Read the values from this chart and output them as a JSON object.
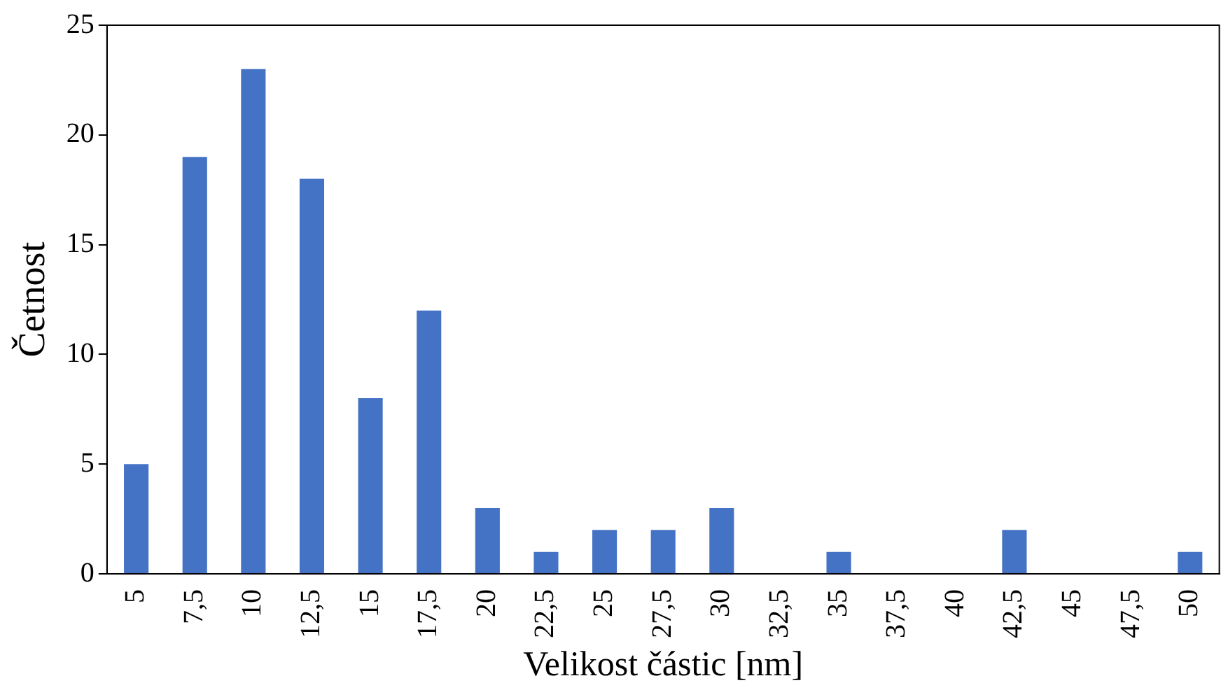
{
  "chart_data": {
    "type": "bar",
    "xlabel": "Velikost částic [nm]",
    "ylabel": "Četnost",
    "categories": [
      "5",
      "7,5",
      "10",
      "12,5",
      "15",
      "17,5",
      "20",
      "22,5",
      "25",
      "27,5",
      "30",
      "32,5",
      "35",
      "37,5",
      "40",
      "42,5",
      "45",
      "47,5",
      "50"
    ],
    "values": [
      5,
      19,
      23,
      18,
      8,
      12,
      3,
      1,
      2,
      2,
      3,
      0,
      1,
      0,
      0,
      2,
      0,
      0,
      1
    ],
    "color": "#4472c4",
    "ylim": [
      0,
      25
    ],
    "yticks": [
      0,
      5,
      10,
      15,
      20,
      25
    ],
    "grid": false,
    "legend": false
  }
}
